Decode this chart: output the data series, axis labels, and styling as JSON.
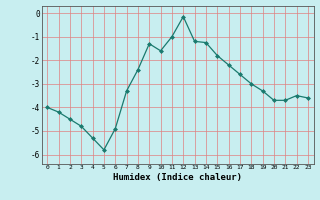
{
  "x": [
    0,
    1,
    2,
    3,
    4,
    5,
    6,
    7,
    8,
    9,
    10,
    11,
    12,
    13,
    14,
    15,
    16,
    17,
    18,
    19,
    20,
    21,
    22,
    23
  ],
  "y": [
    -4.0,
    -4.2,
    -4.5,
    -4.8,
    -5.3,
    -5.8,
    -4.9,
    -3.3,
    -2.4,
    -1.3,
    -1.6,
    -1.0,
    -0.15,
    -1.2,
    -1.25,
    -1.8,
    -2.2,
    -2.6,
    -3.0,
    -3.3,
    -3.7,
    -3.7,
    -3.5,
    -3.6
  ],
  "xlabel": "Humidex (Indice chaleur)",
  "xlim": [
    -0.5,
    23.5
  ],
  "ylim": [
    -6.4,
    0.3
  ],
  "yticks": [
    0,
    -1,
    -2,
    -3,
    -4,
    -5,
    -6
  ],
  "xticks": [
    0,
    1,
    2,
    3,
    4,
    5,
    6,
    7,
    8,
    9,
    10,
    11,
    12,
    13,
    14,
    15,
    16,
    17,
    18,
    19,
    20,
    21,
    22,
    23
  ],
  "line_color": "#1a7a6e",
  "marker": "D",
  "marker_size": 2.0,
  "bg_color": "#c8eef0",
  "grid_color": "#e08080",
  "spine_color": "#555555"
}
